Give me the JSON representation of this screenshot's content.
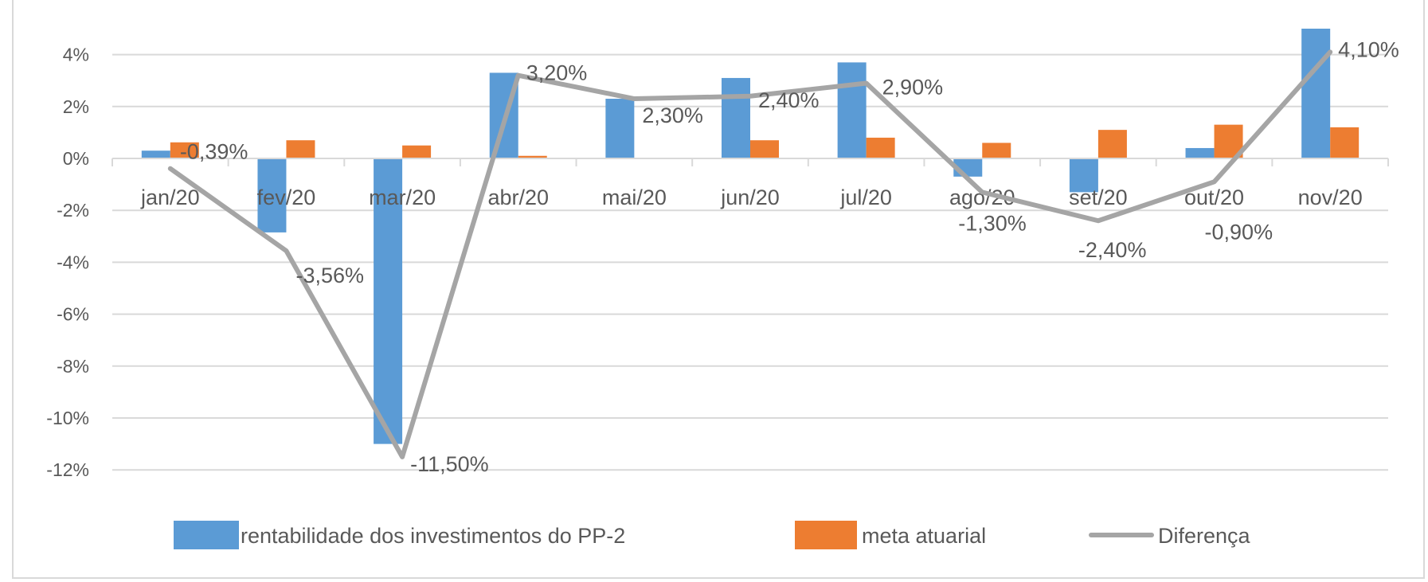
{
  "chart_data": {
    "type": "bar",
    "title": "",
    "xlabel": "",
    "ylabel": "",
    "ylim": [
      -12,
      4
    ],
    "yticks": [
      "4%",
      "2%",
      "0%",
      "-2%",
      "-4%",
      "-6%",
      "-8%",
      "-10%",
      "-12%"
    ],
    "ytick_values": [
      4,
      2,
      0,
      -2,
      -4,
      -6,
      -8,
      -10,
      -12
    ],
    "grid": true,
    "legend_position": "bottom",
    "categories": [
      "jan/20",
      "fev/20",
      "mar/20",
      "abr/20",
      "mai/20",
      "jun/20",
      "jul/20",
      "ago/20",
      "set/20",
      "out/20",
      "nov/20"
    ],
    "series": [
      {
        "name": "rentabilidade dos investimentos do PP-2",
        "kind": "bar",
        "color": "#5b9bd5",
        "values": [
          0.3,
          -2.85,
          -11.0,
          3.3,
          2.3,
          3.1,
          3.7,
          -0.7,
          -1.3,
          0.4,
          5.0
        ]
      },
      {
        "name": "meta atuarial",
        "kind": "bar",
        "color": "#ed7d31",
        "values": [
          0.62,
          0.7,
          0.5,
          0.1,
          0.0,
          0.7,
          0.8,
          0.6,
          1.1,
          1.3,
          1.2
        ]
      },
      {
        "name": "Diferença",
        "kind": "line",
        "color": "#a5a5a5",
        "values": [
          -0.39,
          -3.56,
          -11.5,
          3.2,
          2.3,
          2.4,
          2.9,
          -1.3,
          -2.4,
          -0.9,
          4.1
        ],
        "labels": [
          "-0,39%",
          "-3,56%",
          "-11,50%",
          "3,20%",
          "2,30%",
          "2,40%",
          "2,90%",
          "-1,30%",
          "-2,40%",
          "-0,90%",
          "4,10%"
        ]
      }
    ]
  }
}
